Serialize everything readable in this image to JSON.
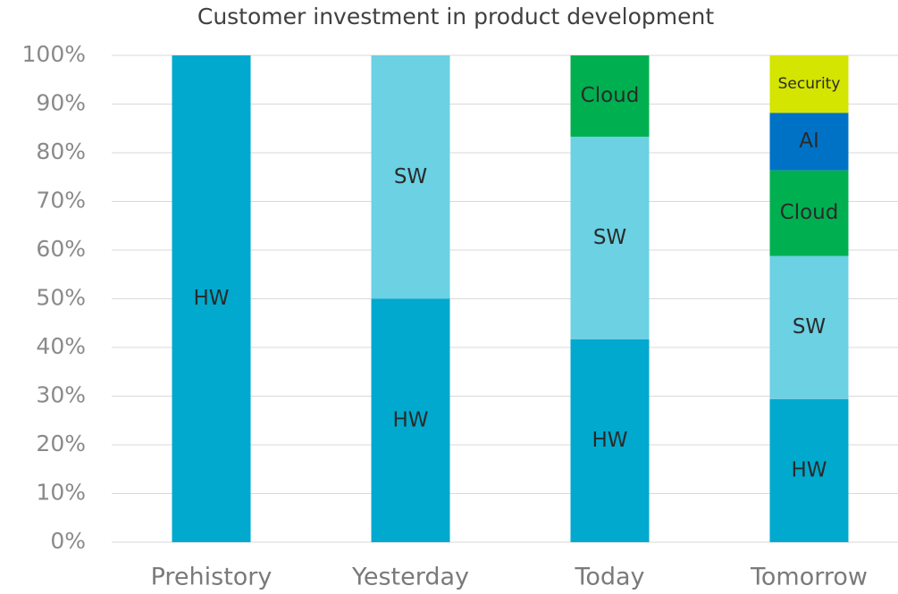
{
  "chart_data": {
    "type": "stacked_bar",
    "title": "Customer investment  in product development",
    "categories": [
      "Prehistory",
      "Yesterday",
      "Today",
      "Tomorrow"
    ],
    "series": [
      {
        "name": "HW",
        "color": "#00a9cd",
        "values": [
          100,
          50,
          41.7,
          29.4
        ]
      },
      {
        "name": "SW",
        "color": "#6bd1e3",
        "values": [
          null,
          50,
          41.6,
          29.4
        ]
      },
      {
        "name": "Cloud",
        "color": "#00b050",
        "values": [
          null,
          null,
          16.7,
          17.6
        ]
      },
      {
        "name": "AI",
        "color": "#0072c6",
        "values": [
          null,
          null,
          null,
          11.8
        ]
      },
      {
        "name": "Security",
        "color": "#d3e500",
        "values": [
          null,
          null,
          null,
          11.8
        ]
      }
    ],
    "ylim": [
      0,
      100
    ],
    "yticks": [
      {
        "value": 0,
        "label": "0%"
      },
      {
        "value": 10,
        "label": "10%"
      },
      {
        "value": 20,
        "label": "20%"
      },
      {
        "value": 30,
        "label": "30%"
      },
      {
        "value": 40,
        "label": "40%"
      },
      {
        "value": 50,
        "label": "50%"
      },
      {
        "value": 60,
        "label": "60%"
      },
      {
        "value": 70,
        "label": "70%"
      },
      {
        "value": 80,
        "label": "80%"
      },
      {
        "value": 90,
        "label": "90%"
      },
      {
        "value": 100,
        "label": "100%"
      }
    ],
    "grid": true
  }
}
